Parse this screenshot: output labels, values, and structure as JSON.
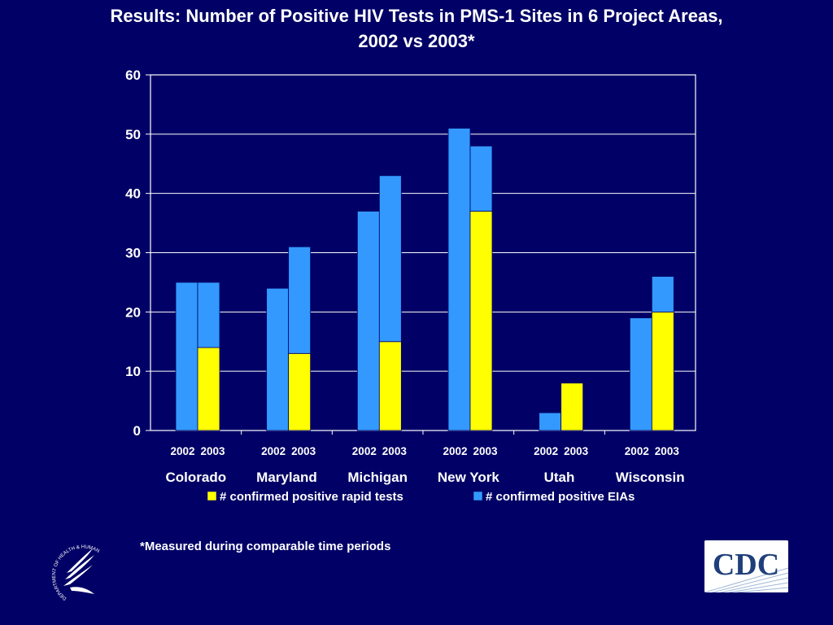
{
  "chart_data": {
    "type": "bar",
    "stacked": true,
    "title": "Results:  Number of Positive HIV Tests in PMS-1 Sites in 6 Project Areas,",
    "subtitle": "2002 vs 2003*",
    "groups": [
      "Colorado",
      "Maryland",
      "Michigan",
      "New York",
      "Utah",
      "Wisconsin"
    ],
    "years": [
      "2002",
      "2003"
    ],
    "series": [
      {
        "name": "# confirmed positive rapid tests",
        "color": "#ffff00",
        "values": {
          "Colorado": [
            0,
            14
          ],
          "Maryland": [
            0,
            13
          ],
          "Michigan": [
            0,
            15
          ],
          "New York": [
            0,
            37
          ],
          "Utah": [
            0,
            8
          ],
          "Wisconsin": [
            0,
            20
          ]
        }
      },
      {
        "name": "# confirmed positive EIAs",
        "color": "#3399ff",
        "values": {
          "Colorado": [
            25,
            11
          ],
          "Maryland": [
            24,
            18
          ],
          "Michigan": [
            37,
            28
          ],
          "New York": [
            51,
            11
          ],
          "Utah": [
            3,
            0
          ],
          "Wisconsin": [
            19,
            6
          ]
        }
      }
    ],
    "yticks": [
      0,
      10,
      20,
      30,
      40,
      50,
      60
    ],
    "ylim": [
      0,
      60
    ],
    "grid": true,
    "legend_position": "bottom"
  },
  "footnote": "*Measured during comparable time periods",
  "logos": {
    "left": "hhs-eagle-logo",
    "left_text": "DEPARTMENT OF HEALTH & HUMAN SERVICES · USA",
    "right": "cdc-logo",
    "right_text": "CDC"
  },
  "colors": {
    "background": "#000066",
    "plot_area": "#000066",
    "grid": "#ffffff",
    "rapid": "#ffff00",
    "eia": "#3399ff"
  }
}
